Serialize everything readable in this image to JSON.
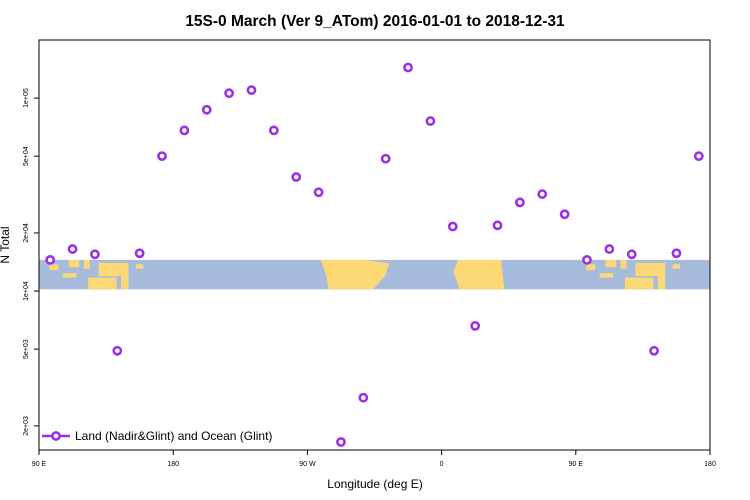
{
  "chart_data": {
    "type": "scatter",
    "title": "15S-0 March (Ver 9_ATom)   2016-01-01 to 2018-12-31",
    "xlabel": "Longitude (deg E)",
    "ylabel": "N Total",
    "yscale": "log",
    "xlim": [
      90,
      540
    ],
    "ylim": [
      1500,
      200000
    ],
    "x_ticks": [
      {
        "value": 90,
        "label": "90 E"
      },
      {
        "value": 180,
        "label": "180"
      },
      {
        "value": 270,
        "label": "90 W"
      },
      {
        "value": 360,
        "label": "0"
      },
      {
        "value": 450,
        "label": "90 E"
      },
      {
        "value": 540,
        "label": "180"
      }
    ],
    "y_ticks": [
      {
        "value": 2000,
        "label": "2e+03"
      },
      {
        "value": 5000,
        "label": "5e+03"
      },
      {
        "value": 10000,
        "label": "1e+04"
      },
      {
        "value": 20000,
        "label": "2e+04"
      },
      {
        "value": 50000,
        "label": "5e+04"
      },
      {
        "value": 100000,
        "label": "1e+05"
      }
    ],
    "legend": {
      "position": "bottom-left"
    },
    "grid": false,
    "map_strip": {
      "lat_range": "15S-0",
      "y_range": [
        10200,
        14500
      ],
      "ocean_color": "#a7bcdc",
      "land_color": "#fdd876"
    },
    "series": [
      {
        "name": "Land (Nadir&Glint) and Ocean (Glint)",
        "color": "#9b30e6",
        "marker": "circle-open",
        "line": false,
        "points": [
          {
            "x": 97.5,
            "y": 14500
          },
          {
            "x": 112.5,
            "y": 16500
          },
          {
            "x": 127.5,
            "y": 15500
          },
          {
            "x": 142.5,
            "y": 4900
          },
          {
            "x": 157.5,
            "y": 15700
          },
          {
            "x": 172.5,
            "y": 50000
          },
          {
            "x": 187.5,
            "y": 68000
          },
          {
            "x": 202.5,
            "y": 87000
          },
          {
            "x": 217.5,
            "y": 106000
          },
          {
            "x": 232.5,
            "y": 110000
          },
          {
            "x": 247.5,
            "y": 68000
          },
          {
            "x": 262.5,
            "y": 39000
          },
          {
            "x": 277.5,
            "y": 32500
          },
          {
            "x": 292.5,
            "y": 1650
          },
          {
            "x": 307.5,
            "y": 2800
          },
          {
            "x": 322.5,
            "y": 48500
          },
          {
            "x": 337.5,
            "y": 144000
          },
          {
            "x": 352.5,
            "y": 76000
          },
          {
            "x": 367.5,
            "y": 21600
          },
          {
            "x": 382.5,
            "y": 6600
          },
          {
            "x": 397.5,
            "y": 21900
          },
          {
            "x": 412.5,
            "y": 28800
          },
          {
            "x": 427.5,
            "y": 31800
          },
          {
            "x": 442.5,
            "y": 25000
          },
          {
            "x": 457.5,
            "y": 14500
          },
          {
            "x": 472.5,
            "y": 16500
          },
          {
            "x": 487.5,
            "y": 15500
          },
          {
            "x": 502.5,
            "y": 4900
          },
          {
            "x": 517.5,
            "y": 15700
          },
          {
            "x": 532.5,
            "y": 50000
          }
        ]
      }
    ]
  }
}
